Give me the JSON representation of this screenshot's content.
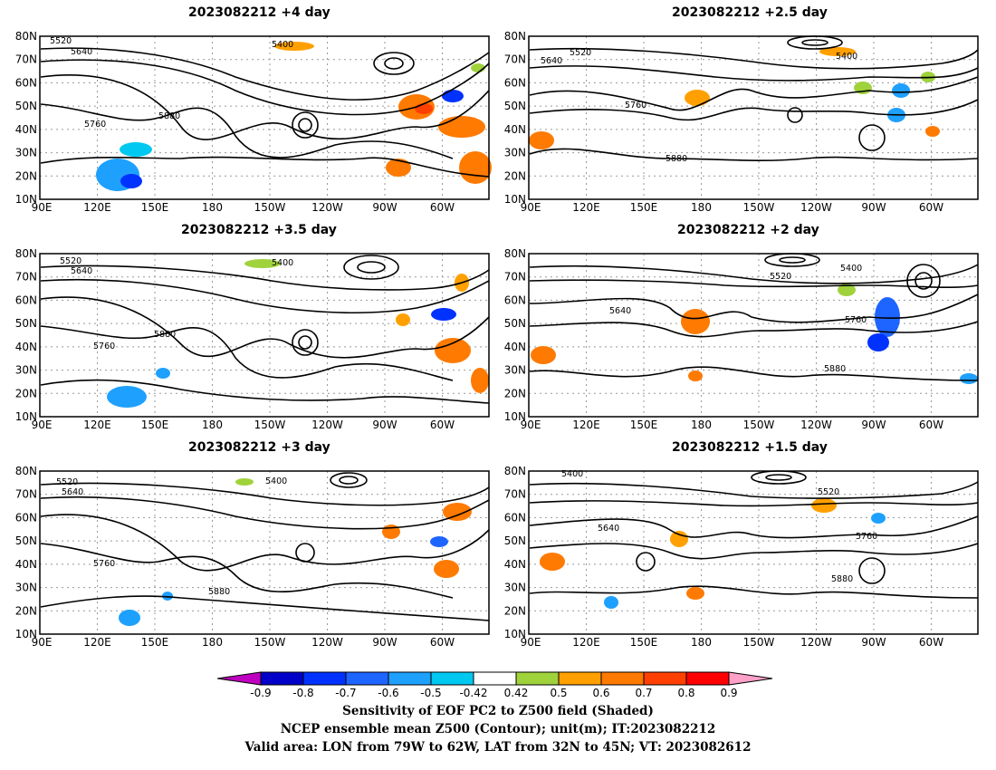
{
  "panels": [
    {
      "title": "2023082212 +4 day"
    },
    {
      "title": "2023082212 +2.5 day"
    },
    {
      "title": "2023082212 +3.5 day"
    },
    {
      "title": "2023082212 +2 day"
    },
    {
      "title": "2023082212 +3 day"
    },
    {
      "title": "2023082212 +1.5 day"
    }
  ],
  "lat_labels": [
    "80N",
    "70N",
    "60N",
    "50N",
    "40N",
    "30N",
    "20N",
    "10N"
  ],
  "lon_labels": [
    "90E",
    "120E",
    "150E",
    "180",
    "150W",
    "120W",
    "90W",
    "60W"
  ],
  "contour_labels": [
    "5400",
    "5520",
    "5640",
    "5760",
    "5880"
  ],
  "colorbar": {
    "ticks": [
      "-0.9",
      "-0.8",
      "-0.7",
      "-0.6",
      "-0.5",
      "-0.42",
      "0.42",
      "0.5",
      "0.6",
      "0.7",
      "0.8",
      "0.9"
    ],
    "colors": [
      "#c000c0",
      "#0000c8",
      "#0032ff",
      "#1e64ff",
      "#1ea0ff",
      "#00c8f0",
      "#ffffff",
      "#a0d23c",
      "#ffa000",
      "#ff7a00",
      "#ff4000",
      "#ff0000",
      "#ffa0c8"
    ]
  },
  "footer": {
    "line1": "Sensitivity of EOF PC2 to Z500 field (Shaded)",
    "line2": "NCEP ensemble mean Z500 (Contour); unit(m); IT:2023082212",
    "line3": "Valid area: LON from 79W to 62W, LAT from 32N to 45N; VT: 2023082612"
  }
}
